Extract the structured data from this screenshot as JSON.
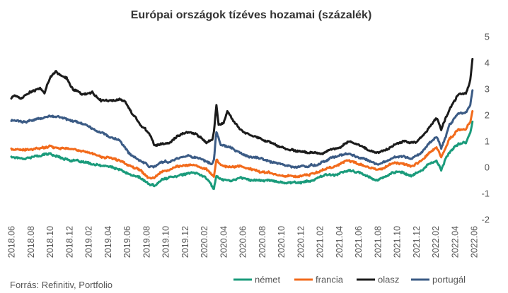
{
  "chart_data": {
    "type": "line",
    "title": "Európai országok tízéves hozamai (százalék)",
    "source": "Forrás: Refinitiv, Portfolio",
    "xlabel": "",
    "ylabel": "",
    "x_ticks": [
      "2018.06",
      "2018.08",
      "2018.10",
      "2018.12",
      "2019.02",
      "2019.04",
      "2019.06",
      "2019.08",
      "2019.10",
      "2019.12",
      "2020.02",
      "2020.04",
      "2020.06",
      "2020.08",
      "2020.10",
      "2020.12",
      "2021.02",
      "2021.04",
      "2021.06",
      "2021.08",
      "2021.10",
      "2021.12",
      "2022.02",
      "2022.04",
      "2022.06"
    ],
    "y_ticks": [
      5,
      4,
      3,
      2,
      1,
      0,
      -1,
      -2
    ],
    "ylim": [
      -2,
      5
    ],
    "xlim": [
      "2018-06-01",
      "2022-06-20"
    ],
    "grid": false,
    "legend_position": "bottom-right",
    "series": [
      {
        "name": "német",
        "color": "#1a9b7b",
        "points": [
          [
            "2018-06-01",
            0.4
          ],
          [
            "2018-07-15",
            0.35
          ],
          [
            "2018-09-01",
            0.45
          ],
          [
            "2018-10-01",
            0.52
          ],
          [
            "2018-11-01",
            0.4
          ],
          [
            "2018-12-15",
            0.25
          ],
          [
            "2019-01-15",
            0.2
          ],
          [
            "2019-02-15",
            0.12
          ],
          [
            "2019-03-15",
            0.05
          ],
          [
            "2019-04-15",
            0.02
          ],
          [
            "2019-05-15",
            -0.1
          ],
          [
            "2019-06-15",
            -0.28
          ],
          [
            "2019-07-15",
            -0.38
          ],
          [
            "2019-08-15",
            -0.65
          ],
          [
            "2019-09-01",
            -0.7
          ],
          [
            "2019-09-20",
            -0.52
          ],
          [
            "2019-10-15",
            -0.4
          ],
          [
            "2019-11-15",
            -0.3
          ],
          [
            "2019-12-15",
            -0.25
          ],
          [
            "2020-01-15",
            -0.22
          ],
          [
            "2020-02-15",
            -0.4
          ],
          [
            "2020-03-05",
            -0.75
          ],
          [
            "2020-03-10",
            -0.85
          ],
          [
            "2020-03-18",
            -0.3
          ],
          [
            "2020-04-01",
            -0.45
          ],
          [
            "2020-05-01",
            -0.5
          ],
          [
            "2020-06-01",
            -0.4
          ],
          [
            "2020-07-01",
            -0.47
          ],
          [
            "2020-08-01",
            -0.5
          ],
          [
            "2020-09-01",
            -0.5
          ],
          [
            "2020-10-01",
            -0.55
          ],
          [
            "2020-11-01",
            -0.58
          ],
          [
            "2020-12-01",
            -0.58
          ],
          [
            "2021-01-01",
            -0.55
          ],
          [
            "2021-02-01",
            -0.45
          ],
          [
            "2021-03-01",
            -0.3
          ],
          [
            "2021-04-01",
            -0.28
          ],
          [
            "2021-05-15",
            -0.13
          ],
          [
            "2021-06-15",
            -0.2
          ],
          [
            "2021-07-15",
            -0.35
          ],
          [
            "2021-08-15",
            -0.48
          ],
          [
            "2021-09-01",
            -0.4
          ],
          [
            "2021-10-01",
            -0.2
          ],
          [
            "2021-11-01",
            -0.2
          ],
          [
            "2021-12-01",
            -0.35
          ],
          [
            "2022-01-01",
            -0.12
          ],
          [
            "2022-02-01",
            0.15
          ],
          [
            "2022-02-20",
            0.25
          ],
          [
            "2022-03-07",
            -0.1
          ],
          [
            "2022-03-20",
            0.3
          ],
          [
            "2022-04-01",
            0.55
          ],
          [
            "2022-05-01",
            0.9
          ],
          [
            "2022-05-25",
            0.95
          ],
          [
            "2022-06-08",
            1.3
          ],
          [
            "2022-06-15",
            1.75
          ]
        ]
      },
      {
        "name": "francia",
        "color": "#f26a1b",
        "points": [
          [
            "2018-06-01",
            0.7
          ],
          [
            "2018-07-15",
            0.65
          ],
          [
            "2018-09-01",
            0.72
          ],
          [
            "2018-10-01",
            0.82
          ],
          [
            "2018-11-01",
            0.75
          ],
          [
            "2018-12-15",
            0.7
          ],
          [
            "2019-01-15",
            0.6
          ],
          [
            "2019-02-15",
            0.55
          ],
          [
            "2019-03-15",
            0.4
          ],
          [
            "2019-04-15",
            0.35
          ],
          [
            "2019-05-15",
            0.25
          ],
          [
            "2019-06-15",
            0.05
          ],
          [
            "2019-07-15",
            -0.05
          ],
          [
            "2019-08-15",
            -0.38
          ],
          [
            "2019-09-01",
            -0.4
          ],
          [
            "2019-09-20",
            -0.2
          ],
          [
            "2019-10-15",
            -0.1
          ],
          [
            "2019-11-15",
            0.05
          ],
          [
            "2019-12-15",
            0.08
          ],
          [
            "2020-01-15",
            0.05
          ],
          [
            "2020-02-15",
            -0.05
          ],
          [
            "2020-03-05",
            -0.3
          ],
          [
            "2020-03-10",
            -0.35
          ],
          [
            "2020-03-18",
            0.3
          ],
          [
            "2020-04-01",
            0.05
          ],
          [
            "2020-05-01",
            0.0
          ],
          [
            "2020-06-01",
            0.05
          ],
          [
            "2020-07-01",
            -0.05
          ],
          [
            "2020-08-01",
            -0.15
          ],
          [
            "2020-09-01",
            -0.2
          ],
          [
            "2020-10-01",
            -0.3
          ],
          [
            "2020-11-01",
            -0.32
          ],
          [
            "2020-12-01",
            -0.35
          ],
          [
            "2021-01-01",
            -0.3
          ],
          [
            "2021-02-01",
            -0.2
          ],
          [
            "2021-03-01",
            -0.05
          ],
          [
            "2021-04-01",
            0.05
          ],
          [
            "2021-05-15",
            0.28
          ],
          [
            "2021-06-15",
            0.12
          ],
          [
            "2021-07-15",
            0.0
          ],
          [
            "2021-08-15",
            -0.1
          ],
          [
            "2021-09-01",
            -0.05
          ],
          [
            "2021-10-01",
            0.15
          ],
          [
            "2021-11-01",
            0.15
          ],
          [
            "2021-12-01",
            0.05
          ],
          [
            "2022-01-01",
            0.25
          ],
          [
            "2022-02-01",
            0.6
          ],
          [
            "2022-02-20",
            0.75
          ],
          [
            "2022-03-07",
            0.4
          ],
          [
            "2022-03-20",
            0.7
          ],
          [
            "2022-04-01",
            1.05
          ],
          [
            "2022-05-01",
            1.45
          ],
          [
            "2022-05-25",
            1.45
          ],
          [
            "2022-06-08",
            1.75
          ],
          [
            "2022-06-15",
            2.15
          ]
        ]
      },
      {
        "name": "olasz",
        "color": "#1b1b1b",
        "points": [
          [
            "2018-06-01",
            2.65
          ],
          [
            "2018-06-15",
            2.75
          ],
          [
            "2018-07-01",
            2.6
          ],
          [
            "2018-08-01",
            2.9
          ],
          [
            "2018-09-01",
            3.0
          ],
          [
            "2018-09-15",
            2.85
          ],
          [
            "2018-10-01",
            3.4
          ],
          [
            "2018-10-20",
            3.65
          ],
          [
            "2018-11-05",
            3.55
          ],
          [
            "2018-11-25",
            3.4
          ],
          [
            "2018-12-15",
            3.0
          ],
          [
            "2019-01-15",
            2.8
          ],
          [
            "2019-02-15",
            2.85
          ],
          [
            "2019-03-15",
            2.55
          ],
          [
            "2019-04-15",
            2.55
          ],
          [
            "2019-05-15",
            2.6
          ],
          [
            "2019-06-01",
            2.5
          ],
          [
            "2019-06-20",
            2.1
          ],
          [
            "2019-07-15",
            1.7
          ],
          [
            "2019-08-01",
            1.5
          ],
          [
            "2019-08-20",
            1.2
          ],
          [
            "2019-09-01",
            0.85
          ],
          [
            "2019-09-20",
            0.88
          ],
          [
            "2019-10-15",
            0.9
          ],
          [
            "2019-11-15",
            1.2
          ],
          [
            "2019-12-15",
            1.35
          ],
          [
            "2020-01-15",
            1.25
          ],
          [
            "2020-02-15",
            0.95
          ],
          [
            "2020-03-05",
            1.05
          ],
          [
            "2020-03-10",
            1.35
          ],
          [
            "2020-03-18",
            2.4
          ],
          [
            "2020-03-25",
            1.6
          ],
          [
            "2020-04-10",
            1.7
          ],
          [
            "2020-04-22",
            2.15
          ],
          [
            "2020-05-15",
            1.7
          ],
          [
            "2020-06-15",
            1.35
          ],
          [
            "2020-07-15",
            1.2
          ],
          [
            "2020-08-15",
            1.05
          ],
          [
            "2020-09-15",
            0.9
          ],
          [
            "2020-10-15",
            0.75
          ],
          [
            "2020-11-15",
            0.65
          ],
          [
            "2020-12-15",
            0.6
          ],
          [
            "2021-01-15",
            0.55
          ],
          [
            "2021-02-15",
            0.5
          ],
          [
            "2021-03-15",
            0.65
          ],
          [
            "2021-04-15",
            0.75
          ],
          [
            "2021-05-15",
            1.0
          ],
          [
            "2021-06-15",
            0.85
          ],
          [
            "2021-07-15",
            0.65
          ],
          [
            "2021-08-15",
            0.55
          ],
          [
            "2021-09-15",
            0.7
          ],
          [
            "2021-10-15",
            0.9
          ],
          [
            "2021-11-15",
            1.0
          ],
          [
            "2021-12-15",
            0.95
          ],
          [
            "2022-01-15",
            1.3
          ],
          [
            "2022-02-01",
            1.6
          ],
          [
            "2022-02-20",
            1.9
          ],
          [
            "2022-03-07",
            1.45
          ],
          [
            "2022-03-20",
            1.85
          ],
          [
            "2022-04-10",
            2.4
          ],
          [
            "2022-05-01",
            2.8
          ],
          [
            "2022-05-25",
            2.85
          ],
          [
            "2022-06-08",
            3.35
          ],
          [
            "2022-06-15",
            4.15
          ]
        ]
      },
      {
        "name": "portugál",
        "color": "#3b5b85",
        "points": [
          [
            "2018-06-01",
            1.8
          ],
          [
            "2018-07-15",
            1.75
          ],
          [
            "2018-09-01",
            1.85
          ],
          [
            "2018-10-01",
            1.95
          ],
          [
            "2018-11-01",
            1.95
          ],
          [
            "2018-12-15",
            1.75
          ],
          [
            "2019-01-15",
            1.65
          ],
          [
            "2019-02-15",
            1.5
          ],
          [
            "2019-03-15",
            1.35
          ],
          [
            "2019-04-15",
            1.15
          ],
          [
            "2019-05-15",
            1.0
          ],
          [
            "2019-06-15",
            0.5
          ],
          [
            "2019-07-15",
            0.3
          ],
          [
            "2019-08-15",
            0.05
          ],
          [
            "2019-09-01",
            0.05
          ],
          [
            "2019-09-20",
            0.2
          ],
          [
            "2019-10-15",
            0.2
          ],
          [
            "2019-11-15",
            0.35
          ],
          [
            "2019-12-15",
            0.45
          ],
          [
            "2020-01-15",
            0.4
          ],
          [
            "2020-02-15",
            0.2
          ],
          [
            "2020-03-05",
            0.15
          ],
          [
            "2020-03-10",
            0.3
          ],
          [
            "2020-03-18",
            1.35
          ],
          [
            "2020-04-01",
            0.85
          ],
          [
            "2020-05-01",
            0.75
          ],
          [
            "2020-06-01",
            0.55
          ],
          [
            "2020-07-01",
            0.4
          ],
          [
            "2020-08-01",
            0.35
          ],
          [
            "2020-09-01",
            0.25
          ],
          [
            "2020-10-01",
            0.15
          ],
          [
            "2020-11-01",
            0.05
          ],
          [
            "2020-12-01",
            0.0
          ],
          [
            "2021-01-01",
            0.05
          ],
          [
            "2021-02-01",
            0.1
          ],
          [
            "2021-03-01",
            0.25
          ],
          [
            "2021-04-01",
            0.4
          ],
          [
            "2021-05-15",
            0.55
          ],
          [
            "2021-06-15",
            0.4
          ],
          [
            "2021-07-15",
            0.25
          ],
          [
            "2021-08-15",
            0.15
          ],
          [
            "2021-09-01",
            0.2
          ],
          [
            "2021-10-01",
            0.4
          ],
          [
            "2021-11-01",
            0.4
          ],
          [
            "2021-12-01",
            0.35
          ],
          [
            "2022-01-01",
            0.55
          ],
          [
            "2022-02-01",
            1.0
          ],
          [
            "2022-02-20",
            1.2
          ],
          [
            "2022-03-07",
            0.75
          ],
          [
            "2022-03-20",
            1.1
          ],
          [
            "2022-04-01",
            1.6
          ],
          [
            "2022-05-01",
            2.05
          ],
          [
            "2022-05-25",
            2.1
          ],
          [
            "2022-06-08",
            2.4
          ],
          [
            "2022-06-15",
            2.95
          ]
        ]
      }
    ]
  }
}
